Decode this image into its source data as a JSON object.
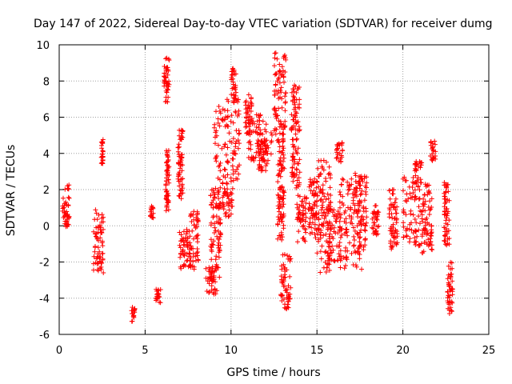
{
  "chart_data": {
    "type": "scatter",
    "title": "Day 147 of 2022, Sidereal Day-to-day VTEC variation (SDTVAR) for receiver dumg",
    "xlabel": "GPS time / hours",
    "ylabel": "SDTVAR / TECUs",
    "xlim": [
      0,
      25
    ],
    "ylim": [
      -6,
      10
    ],
    "xticks": [
      0,
      5,
      10,
      15,
      20,
      25
    ],
    "yticks": [
      -6,
      -4,
      -2,
      0,
      2,
      4,
      6,
      8,
      10
    ],
    "grid": true,
    "marker": "plus",
    "series_color": "#ff0000",
    "clusters": [
      {
        "x": [
          0.2,
          0.6
        ],
        "y": [
          -0.2,
          2.3
        ]
      },
      {
        "x": [
          2.0,
          2.6
        ],
        "y": [
          -2.6,
          0.9
        ]
      },
      {
        "x": [
          2.45,
          2.55
        ],
        "y": [
          3.2,
          4.8
        ]
      },
      {
        "x": [
          4.2,
          4.4
        ],
        "y": [
          -5.3,
          -4.5
        ]
      },
      {
        "x": [
          5.3,
          5.5
        ],
        "y": [
          0.4,
          1.1
        ]
      },
      {
        "x": [
          5.6,
          5.9
        ],
        "y": [
          -4.3,
          -3.5
        ]
      },
      {
        "x": [
          6.1,
          6.4
        ],
        "y": [
          6.8,
          9.3
        ]
      },
      {
        "x": [
          6.2,
          6.4
        ],
        "y": [
          0.8,
          4.2
        ]
      },
      {
        "x": [
          6.9,
          7.2
        ],
        "y": [
          1.5,
          5.4
        ]
      },
      {
        "x": [
          7.0,
          7.5
        ],
        "y": [
          -2.4,
          -0.2
        ]
      },
      {
        "x": [
          7.5,
          8.1
        ],
        "y": [
          -2.4,
          0.8
        ]
      },
      {
        "x": [
          8.5,
          9.2
        ],
        "y": [
          -3.8,
          -2.2
        ]
      },
      {
        "x": [
          8.8,
          9.4
        ],
        "y": [
          -3.0,
          2.2
        ]
      },
      {
        "x": [
          9.0,
          10.5
        ],
        "y": [
          2.5,
          7.0
        ]
      },
      {
        "x": [
          9.5,
          10.1
        ],
        "y": [
          0.5,
          2.5
        ]
      },
      {
        "x": [
          10.0,
          10.3
        ],
        "y": [
          6.8,
          8.7
        ]
      },
      {
        "x": [
          10.8,
          11.2
        ],
        "y": [
          5.0,
          7.3
        ]
      },
      {
        "x": [
          11.0,
          12.4
        ],
        "y": [
          3.5,
          6.2
        ]
      },
      {
        "x": [
          11.6,
          12.2
        ],
        "y": [
          3.0,
          4.8
        ]
      },
      {
        "x": [
          12.5,
          13.2
        ],
        "y": [
          5.0,
          9.6
        ]
      },
      {
        "x": [
          12.7,
          13.1
        ],
        "y": [
          -0.8,
          5.0
        ]
      },
      {
        "x": [
          12.9,
          13.5
        ],
        "y": [
          -4.6,
          -1.5
        ]
      },
      {
        "x": [
          13.5,
          14.0
        ],
        "y": [
          2.0,
          7.8
        ]
      },
      {
        "x": [
          13.8,
          14.4
        ],
        "y": [
          -1.0,
          1.8
        ]
      },
      {
        "x": [
          14.5,
          15.0
        ],
        "y": [
          -0.8,
          2.6
        ]
      },
      {
        "x": [
          15.0,
          15.8
        ],
        "y": [
          -2.6,
          3.7
        ]
      },
      {
        "x": [
          15.6,
          16.4
        ],
        "y": [
          -2.0,
          1.0
        ]
      },
      {
        "x": [
          16.1,
          16.5
        ],
        "y": [
          3.5,
          4.6
        ]
      },
      {
        "x": [
          16.3,
          17.6
        ],
        "y": [
          -2.4,
          2.6
        ]
      },
      {
        "x": [
          17.2,
          17.9
        ],
        "y": [
          -1.6,
          2.9
        ]
      },
      {
        "x": [
          18.2,
          18.6
        ],
        "y": [
          -0.5,
          1.2
        ]
      },
      {
        "x": [
          19.2,
          19.7
        ],
        "y": [
          -1.3,
          2.0
        ]
      },
      {
        "x": [
          20.0,
          21.2
        ],
        "y": [
          -1.2,
          2.8
        ]
      },
      {
        "x": [
          20.7,
          21.1
        ],
        "y": [
          3.0,
          3.6
        ]
      },
      {
        "x": [
          21.1,
          21.7
        ],
        "y": [
          -1.5,
          2.3
        ]
      },
      {
        "x": [
          21.6,
          21.9
        ],
        "y": [
          3.6,
          4.7
        ]
      },
      {
        "x": [
          22.4,
          22.7
        ],
        "y": [
          -1.2,
          2.4
        ]
      },
      {
        "x": [
          22.6,
          22.9
        ],
        "y": [
          -4.9,
          -2.0
        ]
      }
    ]
  }
}
